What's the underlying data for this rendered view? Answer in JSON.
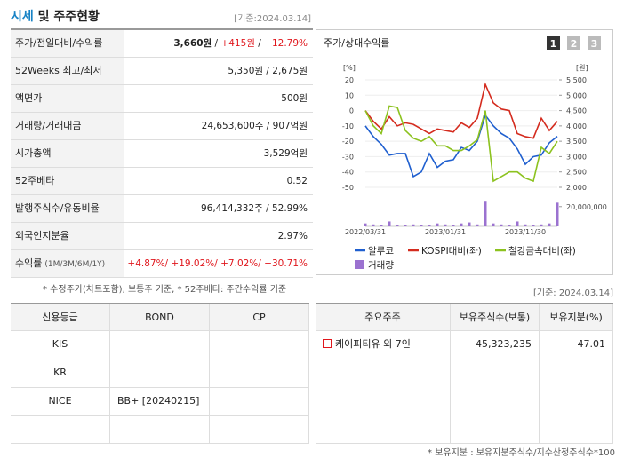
{
  "header": {
    "title_highlight": "시세",
    "title_rest": "및 주주현황",
    "date": "[기준:2024.03.14]"
  },
  "summary": {
    "rows": [
      {
        "label": "주가/전일대비/수익률",
        "value": [
          {
            "text": "3,660원",
            "color": "#222",
            "bold": true
          },
          {
            "text": " / ",
            "color": "#222"
          },
          {
            "text": "+415원",
            "color": "#e0161c"
          },
          {
            "text": " / ",
            "color": "#222"
          },
          {
            "text": "+12.79%",
            "color": "#e0161c"
          }
        ]
      },
      {
        "label": "52Weeks 최고/최저",
        "value": [
          {
            "text": "5,350원 / 2,675원",
            "color": "#222"
          }
        ]
      },
      {
        "label": "액면가",
        "value": [
          {
            "text": "500원",
            "color": "#222"
          }
        ]
      },
      {
        "label": "거래량/거래대금",
        "value": [
          {
            "text": "24,653,600주 / 907억원",
            "color": "#222"
          }
        ]
      },
      {
        "label": "시가총액",
        "value": [
          {
            "text": "3,529억원",
            "color": "#222"
          }
        ]
      },
      {
        "label": "52주베타",
        "value": [
          {
            "text": "0.52",
            "color": "#222"
          }
        ]
      },
      {
        "label": "발행주식수/유동비율",
        "value": [
          {
            "text": "96,414,332주 / 52.99%",
            "color": "#222"
          }
        ]
      },
      {
        "label": "외국인지분율",
        "value": [
          {
            "text": "2.97%",
            "color": "#222"
          }
        ]
      },
      {
        "label": "수익률",
        "label_note": "(1M/3M/6M/1Y)",
        "value": [
          {
            "text": "+4.87%/ +19.02%/ +7.02%/ +30.71%",
            "color": "#e0161c"
          }
        ]
      }
    ],
    "note": "* 수정주가(차트포함), 보통주 기준, * 52주베타: 주간수익률 기준"
  },
  "chart_data": {
    "type": "line",
    "title": "주가/상대수익률",
    "tabs": [
      "1",
      "2",
      "3"
    ],
    "y_unit": "[%]",
    "y2_unit": "[원]",
    "grid": true,
    "categories": [
      "2022/03/31",
      null,
      null,
      null,
      null,
      null,
      null,
      null,
      null,
      null,
      "2023/01/31",
      null,
      null,
      null,
      null,
      null,
      null,
      null,
      null,
      null,
      "2023/11/30",
      null,
      null,
      null,
      null
    ],
    "ylim": [
      -50,
      20
    ],
    "yticks": [
      20,
      10,
      0,
      -10,
      -20,
      -30,
      -40,
      -50
    ],
    "y2lim": [
      2000,
      5500
    ],
    "y2ticks": [
      {
        "value": 5500,
        "label": "5,500"
      },
      {
        "value": 5000,
        "label": "5,000"
      },
      {
        "value": 4500,
        "label": "4,500"
      },
      {
        "value": 4000,
        "label": "4,000"
      },
      {
        "value": 3500,
        "label": "3,500"
      },
      {
        "value": 3000,
        "label": "3,000"
      },
      {
        "value": 2500,
        "label": "2,500"
      },
      {
        "value": 2000,
        "label": "2,000"
      }
    ],
    "y3lim": [
      0,
      27000000
    ],
    "y3ticks": [
      {
        "value": 20000000,
        "label": "20,000,000"
      }
    ],
    "series": [
      {
        "name": "알루코",
        "color": "#1f5fcf",
        "axis": "y2",
        "values": [
          4000,
          3650,
          3400,
          3050,
          3100,
          3100,
          2350,
          2500,
          3100,
          2650,
          2850,
          2900,
          3300,
          3200,
          3500,
          4350,
          4000,
          3750,
          3600,
          3250,
          2750,
          3000,
          3050,
          3450,
          3660
        ]
      },
      {
        "name": "KOSPI대비(좌)",
        "color": "#d42b1e",
        "values": [
          0,
          -7,
          -12,
          -4,
          -10,
          -8,
          -9,
          -12,
          -15,
          -12,
          -13,
          -14,
          -8,
          -11,
          -5,
          17,
          5,
          1,
          0,
          -15,
          -17,
          -18,
          -5,
          -13,
          -7
        ]
      },
      {
        "name": "철강금속대비(좌)",
        "color": "#8cc21f",
        "values": [
          0,
          -10,
          -15,
          3,
          2,
          -13,
          -18,
          -20,
          -17,
          -23,
          -23,
          -26,
          -26,
          -23,
          -19,
          0,
          -46,
          -43,
          -40,
          -40,
          -44,
          -46,
          -24,
          -28,
          -20
        ]
      },
      {
        "name": "거래량",
        "color": "#9b72d0",
        "type": "bar",
        "axis": "y3",
        "values": [
          3000000,
          2000000,
          1000000,
          5000000,
          1500000,
          1000000,
          2000000,
          1000000,
          1500000,
          3000000,
          2000000,
          1000000,
          3000000,
          4000000,
          2000000,
          25000000,
          3000000,
          2000000,
          1000000,
          5000000,
          2000000,
          1000000,
          2000000,
          3000000,
          24000000
        ]
      }
    ],
    "date": "[기준: 2024.03.14]"
  },
  "credit": {
    "headers": [
      "신용등급",
      "BOND",
      "CP"
    ],
    "rows": [
      [
        "KIS",
        null,
        null
      ],
      [
        "KR",
        null,
        null
      ],
      [
        "NICE",
        "BB+  [20240215]",
        null
      ]
    ]
  },
  "holders": {
    "headers": [
      "주요주주",
      "보유주식수(보통)",
      "보유지분(%)"
    ],
    "rows": [
      [
        "케이피티유 외 7인",
        "45,323,235",
        "47.01"
      ]
    ],
    "note": "* 보유지분 : 보유지분주식수/지수산정주식수*100"
  }
}
